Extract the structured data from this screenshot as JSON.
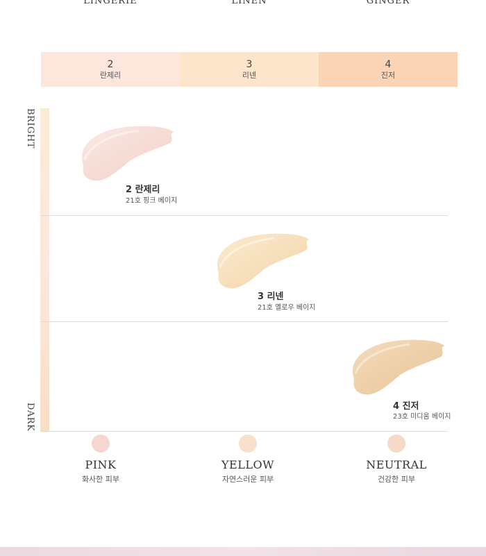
{
  "top_names": [
    "LINGERIE",
    "LINEN",
    "GINGER"
  ],
  "shades": [
    {
      "num": "2",
      "kr": "란제리",
      "color": "#fde7dc"
    },
    {
      "num": "3",
      "kr": "리넨",
      "color": "#fde5cc"
    },
    {
      "num": "4",
      "kr": "진저",
      "color": "#fad4b4"
    }
  ],
  "axis": {
    "top": "BRIGHT",
    "bottom": "DARK"
  },
  "swatches": [
    {
      "title": "2 란제리",
      "desc": "21호 핑크 베이지",
      "color": "#f6d9d3"
    },
    {
      "title": "3 리넨",
      "desc": "21호 옐로우 베이지",
      "color": "#f7dcb9"
    },
    {
      "title": "4 진저",
      "desc": "23호 미디움 베이지",
      "color": "#eecfa7"
    }
  ],
  "tones": [
    {
      "name": "PINK",
      "desc": "화사한 피부",
      "color": "#f6d7d0"
    },
    {
      "name": "YELLOW",
      "desc": "자연스러운 피부",
      "color": "#f8e0cb"
    },
    {
      "name": "NEUTRAL",
      "desc": "건강한 피부",
      "color": "#f7d9c8"
    }
  ]
}
